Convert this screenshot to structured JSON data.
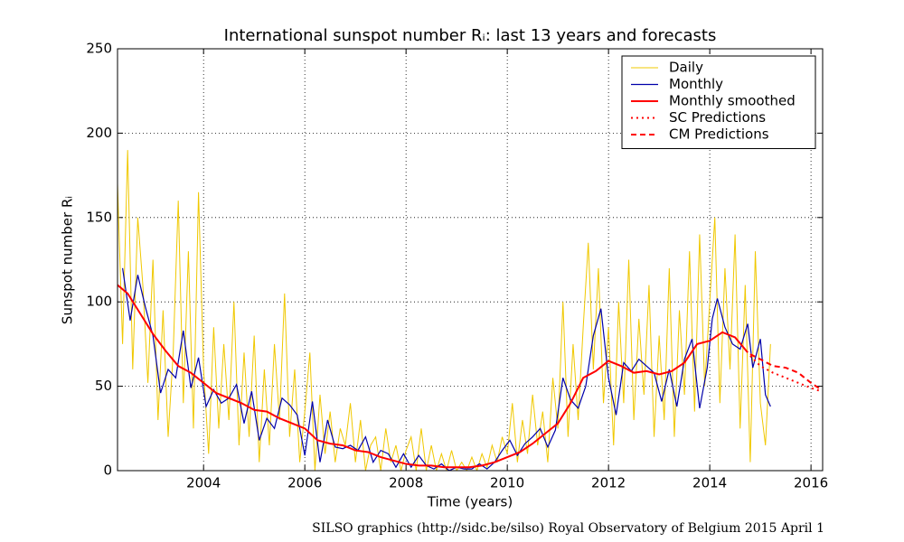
{
  "chart_data": {
    "type": "line",
    "title": "International sunspot number Rᵢ: last 13 years and forecasts",
    "xlabel": "Time (years)",
    "ylabel": "Sunspot number Rᵢ",
    "footer": "SILSO graphics (http://sidc.be/silso)  Royal Observatory of Belgium  2015 April 1",
    "xlim": [
      2002.3,
      2016.23
    ],
    "ylim": [
      0,
      250
    ],
    "xticks": [
      2004,
      2006,
      2008,
      2010,
      2012,
      2014,
      2016
    ],
    "yticks": [
      0,
      50,
      100,
      150,
      200,
      250
    ],
    "grid": true,
    "legend": "upper right",
    "series": [
      {
        "name": "Daily",
        "color": "#f0c800",
        "linestyle": "solid",
        "linewidth": 1,
        "x": [
          2002.3,
          2002.4,
          2002.5,
          2002.6,
          2002.7,
          2002.8,
          2002.9,
          2003.0,
          2003.1,
          2003.2,
          2003.3,
          2003.4,
          2003.5,
          2003.6,
          2003.7,
          2003.8,
          2003.9,
          2004.0,
          2004.1,
          2004.2,
          2004.3,
          2004.4,
          2004.5,
          2004.6,
          2004.7,
          2004.8,
          2004.9,
          2005.0,
          2005.1,
          2005.2,
          2005.3,
          2005.4,
          2005.5,
          2005.6,
          2005.7,
          2005.8,
          2005.9,
          2006.0,
          2006.1,
          2006.2,
          2006.3,
          2006.4,
          2006.5,
          2006.6,
          2006.7,
          2006.8,
          2006.9,
          2007.0,
          2007.1,
          2007.2,
          2007.3,
          2007.4,
          2007.5,
          2007.6,
          2007.7,
          2007.8,
          2007.9,
          2008.0,
          2008.1,
          2008.2,
          2008.3,
          2008.4,
          2008.5,
          2008.6,
          2008.7,
          2008.8,
          2008.9,
          2009.0,
          2009.1,
          2009.2,
          2009.3,
          2009.4,
          2009.5,
          2009.6,
          2009.7,
          2009.8,
          2009.9,
          2010.0,
          2010.1,
          2010.2,
          2010.3,
          2010.4,
          2010.5,
          2010.6,
          2010.7,
          2010.8,
          2010.9,
          2011.0,
          2011.1,
          2011.2,
          2011.3,
          2011.4,
          2011.5,
          2011.6,
          2011.7,
          2011.8,
          2011.9,
          2012.0,
          2012.1,
          2012.2,
          2012.3,
          2012.4,
          2012.5,
          2012.6,
          2012.7,
          2012.8,
          2012.9,
          2013.0,
          2013.1,
          2013.2,
          2013.3,
          2013.4,
          2013.5,
          2013.6,
          2013.7,
          2013.8,
          2013.9,
          2014.0,
          2014.1,
          2014.2,
          2014.3,
          2014.4,
          2014.5,
          2014.6,
          2014.7,
          2014.8,
          2014.9,
          2015.0,
          2015.1,
          2015.2
        ],
        "values": [
          170,
          75,
          190,
          60,
          150,
          110,
          52,
          125,
          30,
          95,
          20,
          70,
          160,
          40,
          130,
          25,
          165,
          60,
          10,
          85,
          25,
          75,
          30,
          100,
          15,
          70,
          20,
          80,
          5,
          60,
          15,
          75,
          30,
          105,
          20,
          60,
          5,
          35,
          70,
          0,
          45,
          10,
          35,
          5,
          25,
          15,
          40,
          5,
          30,
          0,
          15,
          20,
          0,
          25,
          5,
          15,
          0,
          12,
          20,
          0,
          25,
          0,
          15,
          0,
          10,
          0,
          12,
          0,
          5,
          0,
          8,
          0,
          10,
          2,
          15,
          5,
          20,
          10,
          40,
          5,
          30,
          10,
          45,
          15,
          35,
          5,
          55,
          25,
          100,
          20,
          75,
          30,
          85,
          135,
          60,
          120,
          40,
          85,
          15,
          100,
          40,
          125,
          30,
          90,
          45,
          110,
          20,
          80,
          30,
          120,
          20,
          95,
          45,
          130,
          35,
          140,
          50,
          100,
          150,
          40,
          120,
          60,
          140,
          25,
          110,
          5,
          130,
          40,
          15,
          75
        ]
      },
      {
        "name": "Monthly",
        "color": "#0000aa",
        "linestyle": "solid",
        "linewidth": 1.2,
        "x": [
          2002.4,
          2002.55,
          2002.7,
          2002.85,
          2003.0,
          2003.15,
          2003.3,
          2003.45,
          2003.6,
          2003.75,
          2003.9,
          2004.05,
          2004.2,
          2004.35,
          2004.5,
          2004.65,
          2004.8,
          2004.95,
          2005.1,
          2005.25,
          2005.4,
          2005.55,
          2005.7,
          2005.85,
          2006.0,
          2006.15,
          2006.3,
          2006.45,
          2006.6,
          2006.75,
          2006.9,
          2007.05,
          2007.2,
          2007.35,
          2007.5,
          2007.65,
          2007.8,
          2007.95,
          2008.1,
          2008.25,
          2008.4,
          2008.55,
          2008.7,
          2008.85,
          2009.0,
          2009.15,
          2009.3,
          2009.45,
          2009.6,
          2009.75,
          2009.9,
          2010.05,
          2010.2,
          2010.35,
          2010.5,
          2010.65,
          2010.8,
          2010.95,
          2011.1,
          2011.25,
          2011.4,
          2011.55,
          2011.7,
          2011.85,
          2012.0,
          2012.15,
          2012.3,
          2012.45,
          2012.6,
          2012.75,
          2012.9,
          2013.05,
          2013.2,
          2013.35,
          2013.5,
          2013.65,
          2013.8,
          2013.95,
          2014.05,
          2014.15,
          2014.3,
          2014.45,
          2014.6,
          2014.75,
          2014.85,
          2015.0,
          2015.1,
          2015.2
        ],
        "values": [
          120,
          89,
          116,
          97,
          80,
          46,
          60,
          55,
          83,
          49,
          67,
          38,
          48,
          40,
          43,
          51,
          28,
          47,
          18,
          31,
          25,
          43,
          39,
          33,
          9,
          41,
          5,
          30,
          14,
          13,
          15,
          12,
          20,
          5,
          12,
          10,
          2,
          10,
          2,
          9,
          3,
          1,
          4,
          0,
          2,
          1,
          1,
          4,
          1,
          5,
          12,
          18,
          9,
          16,
          20,
          25,
          14,
          24,
          55,
          42,
          37,
          50,
          80,
          96,
          55,
          33,
          64,
          59,
          66,
          62,
          58,
          41,
          60,
          38,
          66,
          78,
          37,
          61,
          90,
          102,
          85,
          75,
          72,
          87,
          61,
          78,
          45,
          38
        ]
      },
      {
        "name": "Monthly smoothed",
        "color": "#ff0000",
        "linestyle": "solid",
        "linewidth": 2,
        "x": [
          2002.3,
          2002.5,
          2002.75,
          2003,
          2003.25,
          2003.5,
          2003.75,
          2004,
          2004.25,
          2004.5,
          2004.75,
          2005,
          2005.25,
          2005.5,
          2005.75,
          2006,
          2006.25,
          2006.5,
          2006.75,
          2007,
          2007.25,
          2007.5,
          2007.75,
          2008,
          2008.25,
          2008.5,
          2008.75,
          2009,
          2009.25,
          2009.5,
          2009.75,
          2010,
          2010.25,
          2010.5,
          2010.75,
          2011,
          2011.25,
          2011.5,
          2011.75,
          2012,
          2012.25,
          2012.5,
          2012.75,
          2013,
          2013.25,
          2013.5,
          2013.75,
          2014,
          2014.25,
          2014.5,
          2014.75
        ],
        "values": [
          110,
          105,
          93,
          81,
          71,
          62,
          58,
          52,
          46,
          43,
          40,
          36,
          35,
          31,
          28,
          25,
          18,
          16,
          15,
          12,
          11,
          8,
          6,
          4,
          3,
          3,
          2,
          2,
          2,
          3,
          5,
          8,
          11,
          16,
          22,
          28,
          40,
          55,
          59,
          65,
          62,
          58,
          59,
          57,
          59,
          64,
          75,
          77,
          82,
          79,
          70
        ]
      },
      {
        "name": "SC Predictions",
        "color": "#ff0000",
        "linestyle": "dotted",
        "linewidth": 2,
        "x": [
          2014.8,
          2015,
          2015.25,
          2015.5,
          2015.75,
          2016,
          2016.2
        ],
        "values": [
          68,
          62,
          58,
          55,
          52,
          49,
          47
        ]
      },
      {
        "name": "CM Predictions",
        "color": "#ff0000",
        "linestyle": "dashed",
        "linewidth": 2,
        "x": [
          2014.8,
          2015,
          2015.25,
          2015.5,
          2015.75,
          2016,
          2016.2
        ],
        "values": [
          69,
          66,
          62,
          61,
          58,
          52,
          48
        ]
      }
    ]
  }
}
